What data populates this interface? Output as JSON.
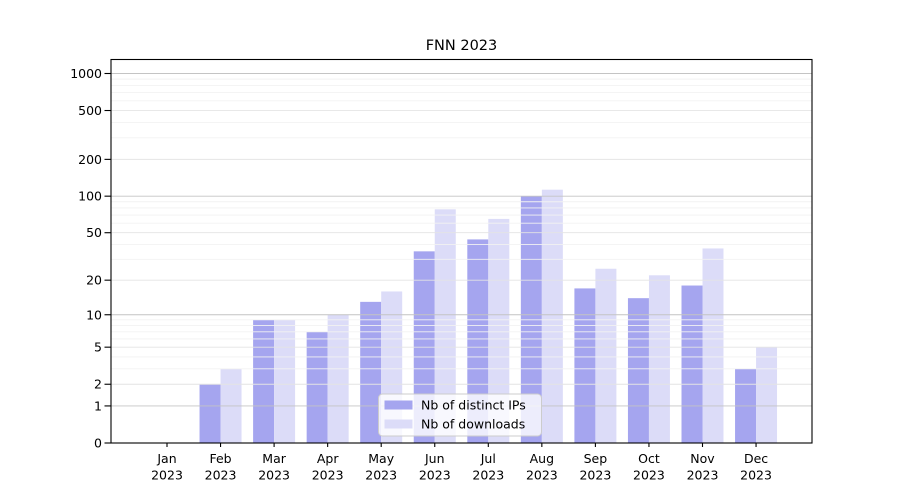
{
  "title": "FNN 2023",
  "chart_data": {
    "type": "bar",
    "title": "FNN 2023",
    "categories": [
      "Jan",
      "Feb",
      "Mar",
      "Apr",
      "May",
      "Jun",
      "Jul",
      "Aug",
      "Sep",
      "Oct",
      "Nov",
      "Dec"
    ],
    "x_label_year": "2023",
    "series": [
      {
        "name": "Nb of distinct IPs",
        "color": "#a5a5ef",
        "values": [
          0,
          2,
          9,
          7,
          13,
          35,
          44,
          100,
          17,
          14,
          18,
          3
        ]
      },
      {
        "name": "Nb of downloads",
        "color": "#dcdcf8",
        "values": [
          0,
          3,
          9,
          10,
          16,
          78,
          65,
          113,
          25,
          22,
          37,
          5
        ]
      }
    ],
    "y_ticks": [
      0,
      1,
      2,
      5,
      10,
      20,
      50,
      100,
      200,
      500,
      1000
    ],
    "y_tick_labels": [
      "0",
      "1",
      "2",
      "5",
      "10",
      "20",
      "50",
      "100",
      "200",
      "500",
      "1000"
    ],
    "y_scale": "log1p",
    "ylim": [
      0,
      1288
    ],
    "grid": true,
    "legend_position": "lower center",
    "colors": {
      "grid_major": "#c4c4c4",
      "grid_mid": "#e4e4e4",
      "grid_minor": "#f2f2f2",
      "axis": "#000000",
      "background": "#ffffff",
      "legend_border": "#cccccc",
      "legend_background": "rgba(255,255,255,0.8)"
    }
  }
}
